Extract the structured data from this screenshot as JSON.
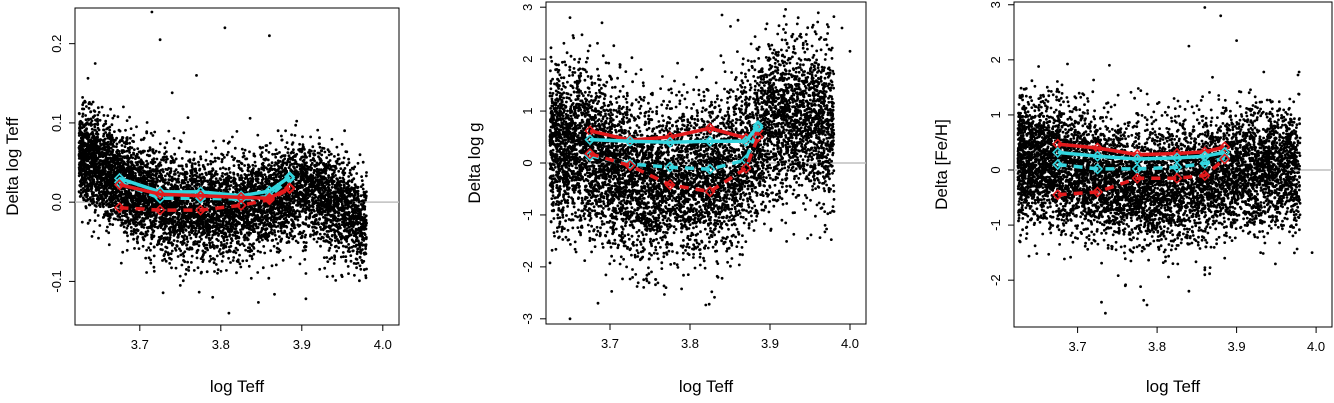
{
  "colors": {
    "points": "#000000",
    "zero_line": "#bfbfbf",
    "series_red": "#e31a1c",
    "series_cyan": "#33d6e0"
  },
  "chart_data": [
    {
      "type": "scatter",
      "xlabel": "log Teff",
      "ylabel": "Delta log Teff",
      "xlim": [
        3.62,
        4.02
      ],
      "ylim": [
        -0.155,
        0.245
      ],
      "xticks": [
        "3.7",
        "3.8",
        "3.9",
        "4.0"
      ],
      "yticks": [
        "-0.1",
        "0.0",
        "0.1",
        "0.2"
      ],
      "xtick_values": [
        3.7,
        3.8,
        3.9,
        4.0
      ],
      "ytick_values": [
        -0.1,
        0.0,
        0.1,
        0.2
      ],
      "reference_line_y": 0,
      "grid": false,
      "scatter_cloud": {
        "description_level": "approximate trend of dense point cloud",
        "trend": [
          [
            3.625,
            0.06
          ],
          [
            3.65,
            0.045
          ],
          [
            3.7,
            0.01
          ],
          [
            3.75,
            -0.005
          ],
          [
            3.8,
            -0.01
          ],
          [
            3.85,
            0.0
          ],
          [
            3.9,
            0.015
          ],
          [
            3.95,
            -0.005
          ],
          [
            3.98,
            -0.03
          ]
        ],
        "spread": 0.03,
        "outliers": [
          [
            3.645,
            0.175
          ],
          [
            3.725,
            0.205
          ],
          [
            3.715,
            0.24
          ],
          [
            3.805,
            0.22
          ],
          [
            3.77,
            0.16
          ],
          [
            3.74,
            0.138
          ],
          [
            3.86,
            0.21
          ],
          [
            3.88,
            0.09
          ],
          [
            3.905,
            -0.09
          ],
          [
            3.905,
            -0.122
          ],
          [
            3.81,
            -0.14
          ],
          [
            3.79,
            -0.12
          ],
          [
            3.75,
            -0.105
          ]
        ]
      },
      "series": [
        {
          "style": "solid",
          "color": "cyan",
          "x": [
            3.675,
            3.725,
            3.775,
            3.825,
            3.86,
            3.885
          ],
          "y": [
            0.03,
            0.013,
            0.013,
            0.008,
            0.014,
            0.032
          ]
        },
        {
          "style": "dashed",
          "color": "cyan",
          "x": [
            3.675,
            3.725,
            3.775,
            3.825,
            3.86,
            3.885
          ],
          "y": [
            0.025,
            0.005,
            0.005,
            0.004,
            0.007,
            0.03
          ]
        },
        {
          "style": "solid",
          "color": "red",
          "x": [
            3.675,
            3.725,
            3.775,
            3.825,
            3.86,
            3.885
          ],
          "y": [
            0.022,
            0.01,
            0.008,
            0.006,
            0.005,
            0.018
          ]
        },
        {
          "style": "dashed",
          "color": "red",
          "x": [
            3.675,
            3.725,
            3.775,
            3.825,
            3.86,
            3.885
          ],
          "y": [
            -0.007,
            -0.01,
            -0.01,
            -0.004,
            0.003,
            0.017
          ]
        }
      ]
    },
    {
      "type": "scatter",
      "xlabel": "log Teff",
      "ylabel": "Delta log g",
      "xlim": [
        3.62,
        4.02
      ],
      "ylim": [
        -3.1,
        3.1
      ],
      "xticks": [
        "3.7",
        "3.8",
        "3.9",
        "4.0"
      ],
      "yticks": [
        "-3",
        "-2",
        "-1",
        "0",
        "1",
        "2",
        "3"
      ],
      "xtick_values": [
        3.7,
        3.8,
        3.9,
        4.0
      ],
      "ytick_values": [
        -3,
        -2,
        -1,
        0,
        1,
        2,
        3
      ],
      "reference_line_y": 0,
      "grid": false,
      "scatter_cloud": {
        "description_level": "approximate trend of dense point cloud",
        "trend": [
          [
            3.625,
            0.3
          ],
          [
            3.65,
            0.4
          ],
          [
            3.7,
            -0.1
          ],
          [
            3.75,
            -0.4
          ],
          [
            3.8,
            -0.3
          ],
          [
            3.85,
            -0.2
          ],
          [
            3.9,
            0.8
          ],
          [
            3.95,
            0.9
          ],
          [
            3.98,
            0.7
          ]
        ],
        "spread": 0.75,
        "outliers": [
          [
            3.65,
            2.8
          ],
          [
            3.69,
            2.7
          ],
          [
            3.84,
            2.85
          ],
          [
            3.86,
            2.75
          ],
          [
            3.99,
            2.6
          ],
          [
            4.0,
            2.15
          ],
          [
            3.65,
            -3.0
          ],
          [
            3.685,
            -2.7
          ],
          [
            3.77,
            -2.4
          ],
          [
            3.835,
            -2.2
          ],
          [
            3.88,
            -1.3
          ]
        ]
      },
      "series": [
        {
          "style": "solid",
          "color": "red",
          "x": [
            3.675,
            3.725,
            3.775,
            3.825,
            3.87,
            3.885
          ],
          "y": [
            0.62,
            0.44,
            0.5,
            0.67,
            0.48,
            0.62
          ]
        },
        {
          "style": "solid",
          "color": "cyan",
          "x": [
            3.675,
            3.725,
            3.775,
            3.825,
            3.87,
            3.885
          ],
          "y": [
            0.45,
            0.42,
            0.4,
            0.42,
            0.42,
            0.72
          ]
        },
        {
          "style": "dashed",
          "color": "cyan",
          "x": [
            3.675,
            3.725,
            3.775,
            3.825,
            3.87,
            3.885
          ],
          "y": [
            0.14,
            -0.02,
            -0.08,
            -0.12,
            0.06,
            0.68
          ]
        },
        {
          "style": "dashed",
          "color": "red",
          "x": [
            3.675,
            3.725,
            3.775,
            3.825,
            3.87,
            3.885
          ],
          "y": [
            0.18,
            -0.05,
            -0.42,
            -0.55,
            -0.1,
            0.5
          ]
        }
      ]
    },
    {
      "type": "scatter",
      "xlabel": "log Teff",
      "ylabel": "Delta [Fe/H]",
      "xlim": [
        3.62,
        4.02
      ],
      "ylim": [
        -2.85,
        3.05
      ],
      "xticks": [
        "3.7",
        "3.8",
        "3.9",
        "4.0"
      ],
      "yticks": [
        "-2",
        "-1",
        "0",
        "1",
        "2",
        "3"
      ],
      "xtick_values": [
        3.7,
        3.8,
        3.9,
        4.0
      ],
      "ytick_values": [
        -2,
        -1,
        0,
        1,
        2,
        3
      ],
      "reference_line_y": 0,
      "grid": false,
      "scatter_cloud": {
        "description_level": "approximate trend of dense point cloud",
        "trend": [
          [
            3.625,
            0.1
          ],
          [
            3.65,
            0.2
          ],
          [
            3.7,
            0.0
          ],
          [
            3.75,
            -0.2
          ],
          [
            3.8,
            -0.3
          ],
          [
            3.85,
            -0.2
          ],
          [
            3.9,
            0.0
          ],
          [
            3.95,
            0.1
          ],
          [
            3.98,
            0.0
          ]
        ],
        "spread": 0.55,
        "outliers": [
          [
            3.86,
            2.95
          ],
          [
            3.88,
            2.8
          ],
          [
            3.9,
            2.35
          ],
          [
            3.84,
            2.25
          ],
          [
            3.74,
            1.9
          ],
          [
            3.73,
            -2.4
          ],
          [
            3.735,
            -2.6
          ],
          [
            3.76,
            -2.1
          ],
          [
            3.84,
            -2.2
          ],
          [
            3.86,
            -1.9
          ],
          [
            3.885,
            -1.6
          ],
          [
            3.995,
            -1.5
          ]
        ]
      },
      "series": [
        {
          "style": "solid",
          "color": "red",
          "x": [
            3.675,
            3.725,
            3.775,
            3.825,
            3.86,
            3.885
          ],
          "y": [
            0.47,
            0.4,
            0.28,
            0.3,
            0.33,
            0.42
          ]
        },
        {
          "style": "solid",
          "color": "cyan",
          "x": [
            3.675,
            3.725,
            3.775,
            3.825,
            3.86,
            3.885
          ],
          "y": [
            0.32,
            0.25,
            0.2,
            0.22,
            0.25,
            0.32
          ]
        },
        {
          "style": "dashed",
          "color": "cyan",
          "x": [
            3.675,
            3.725,
            3.775,
            3.825,
            3.86,
            3.885
          ],
          "y": [
            0.1,
            0.02,
            0.02,
            0.05,
            0.12,
            0.22
          ]
        },
        {
          "style": "dashed",
          "color": "red",
          "x": [
            3.675,
            3.725,
            3.775,
            3.825,
            3.86,
            3.885
          ],
          "y": [
            -0.45,
            -0.4,
            -0.15,
            -0.15,
            -0.1,
            0.2
          ]
        }
      ]
    }
  ]
}
